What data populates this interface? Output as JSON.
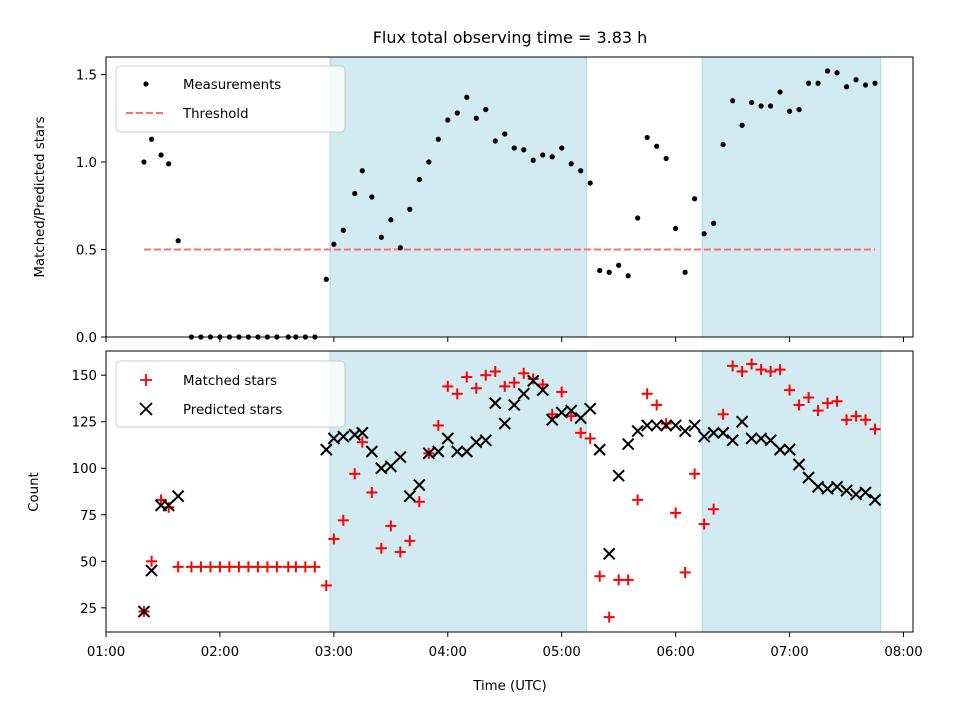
{
  "chart_data": [
    {
      "type": "scatter",
      "title": "Flux total observing time = 3.83 h",
      "xlabel": "",
      "ylabel": "Matched/Predicted stars",
      "xlim": [
        "01:00",
        "08:05"
      ],
      "ylim": [
        0,
        1.6
      ],
      "yticks": [
        "0.0",
        "0.5",
        "1.0",
        "1.5"
      ],
      "shaded_intervals": [
        [
          "02:58",
          "05:13"
        ],
        [
          "06:14",
          "07:48"
        ]
      ],
      "legend_position": "top-left",
      "grid": false,
      "series": [
        {
          "name": "Measurements",
          "marker": "dot",
          "color": "#000000",
          "points": [
            [
              "01:20",
              1.0
            ],
            [
              "01:24",
              1.13
            ],
            [
              "01:29",
              1.04
            ],
            [
              "01:33",
              0.99
            ],
            [
              "01:38",
              0.55
            ],
            [
              "01:45",
              0.0
            ],
            [
              "01:50",
              0.0
            ],
            [
              "01:55",
              0.0
            ],
            [
              "02:00",
              0.0
            ],
            [
              "02:05",
              0.0
            ],
            [
              "02:10",
              0.0
            ],
            [
              "02:15",
              0.0
            ],
            [
              "02:20",
              0.0
            ],
            [
              "02:25",
              0.0
            ],
            [
              "02:30",
              0.0
            ],
            [
              "02:36",
              0.0
            ],
            [
              "02:40",
              0.0
            ],
            [
              "02:45",
              0.0
            ],
            [
              "02:50",
              0.0
            ],
            [
              "02:56",
              0.33
            ],
            [
              "03:00",
              0.53
            ],
            [
              "03:05",
              0.61
            ],
            [
              "03:11",
              0.82
            ],
            [
              "03:15",
              0.95
            ],
            [
              "03:20",
              0.8
            ],
            [
              "03:25",
              0.57
            ],
            [
              "03:30",
              0.67
            ],
            [
              "03:35",
              0.51
            ],
            [
              "03:40",
              0.73
            ],
            [
              "03:45",
              0.9
            ],
            [
              "03:50",
              1.0
            ],
            [
              "03:55",
              1.13
            ],
            [
              "04:00",
              1.24
            ],
            [
              "04:05",
              1.28
            ],
            [
              "04:10",
              1.37
            ],
            [
              "04:15",
              1.25
            ],
            [
              "04:20",
              1.3
            ],
            [
              "04:25",
              1.12
            ],
            [
              "04:30",
              1.16
            ],
            [
              "04:35",
              1.08
            ],
            [
              "04:40",
              1.07
            ],
            [
              "04:45",
              1.01
            ],
            [
              "04:50",
              1.04
            ],
            [
              "04:55",
              1.03
            ],
            [
              "05:00",
              1.08
            ],
            [
              "05:05",
              0.99
            ],
            [
              "05:10",
              0.95
            ],
            [
              "05:15",
              0.88
            ],
            [
              "05:20",
              0.38
            ],
            [
              "05:25",
              0.37
            ],
            [
              "05:30",
              0.41
            ],
            [
              "05:35",
              0.35
            ],
            [
              "05:40",
              0.68
            ],
            [
              "05:45",
              1.14
            ],
            [
              "05:50",
              1.09
            ],
            [
              "05:55",
              1.02
            ],
            [
              "06:00",
              0.62
            ],
            [
              "06:05",
              0.37
            ],
            [
              "06:10",
              0.79
            ],
            [
              "06:15",
              0.59
            ],
            [
              "06:20",
              0.65
            ],
            [
              "06:25",
              1.1
            ],
            [
              "06:30",
              1.35
            ],
            [
              "06:35",
              1.21
            ],
            [
              "06:40",
              1.34
            ],
            [
              "06:45",
              1.32
            ],
            [
              "06:50",
              1.32
            ],
            [
              "06:55",
              1.4
            ],
            [
              "07:00",
              1.29
            ],
            [
              "07:05",
              1.3
            ],
            [
              "07:10",
              1.45
            ],
            [
              "07:15",
              1.45
            ],
            [
              "07:20",
              1.52
            ],
            [
              "07:25",
              1.51
            ],
            [
              "07:30",
              1.43
            ],
            [
              "07:35",
              1.47
            ],
            [
              "07:40",
              1.44
            ],
            [
              "07:45",
              1.45
            ]
          ]
        },
        {
          "name": "Threshold",
          "line": "dashed",
          "color": "#ff7070",
          "points": [
            [
              "01:20",
              0.5
            ],
            [
              "07:45",
              0.5
            ]
          ]
        }
      ]
    },
    {
      "type": "scatter",
      "title": "",
      "xlabel": "Time (UTC)",
      "ylabel": "Count",
      "xlim": [
        "01:00",
        "08:05"
      ],
      "ylim": [
        12,
        163
      ],
      "xticks": [
        "01:00",
        "02:00",
        "03:00",
        "04:00",
        "05:00",
        "06:00",
        "07:00",
        "08:00"
      ],
      "yticks": [
        "25",
        "50",
        "75",
        "100",
        "125",
        "150"
      ],
      "shaded_intervals": [
        [
          "02:58",
          "05:13"
        ],
        [
          "06:14",
          "07:48"
        ]
      ],
      "legend_position": "top-left",
      "grid": false,
      "series": [
        {
          "name": "Matched stars",
          "marker": "plus",
          "color": "#ff0000",
          "points": [
            [
              "01:20",
              23
            ],
            [
              "01:24",
              50
            ],
            [
              "01:29",
              83
            ],
            [
              "01:33",
              79
            ],
            [
              "01:38",
              47
            ],
            [
              "01:45",
              47
            ],
            [
              "01:50",
              47
            ],
            [
              "01:55",
              47
            ],
            [
              "02:00",
              47
            ],
            [
              "02:05",
              47
            ],
            [
              "02:10",
              47
            ],
            [
              "02:15",
              47
            ],
            [
              "02:20",
              47
            ],
            [
              "02:25",
              47
            ],
            [
              "02:30",
              47
            ],
            [
              "02:36",
              47
            ],
            [
              "02:40",
              47
            ],
            [
              "02:45",
              47
            ],
            [
              "02:50",
              47
            ],
            [
              "02:56",
              37
            ],
            [
              "03:00",
              62
            ],
            [
              "03:05",
              72
            ],
            [
              "03:11",
              97
            ],
            [
              "03:15",
              114
            ],
            [
              "03:20",
              87
            ],
            [
              "03:25",
              57
            ],
            [
              "03:30",
              69
            ],
            [
              "03:35",
              55
            ],
            [
              "03:40",
              61
            ],
            [
              "03:45",
              82
            ],
            [
              "03:50",
              108
            ],
            [
              "03:55",
              123
            ],
            [
              "04:00",
              144
            ],
            [
              "04:05",
              140
            ],
            [
              "04:10",
              149
            ],
            [
              "04:15",
              143
            ],
            [
              "04:20",
              150
            ],
            [
              "04:25",
              152
            ],
            [
              "04:30",
              144
            ],
            [
              "04:35",
              146
            ],
            [
              "04:40",
              151
            ],
            [
              "04:45",
              148
            ],
            [
              "04:50",
              145
            ],
            [
              "04:55",
              129
            ],
            [
              "05:00",
              141
            ],
            [
              "05:05",
              128
            ],
            [
              "05:10",
              119
            ],
            [
              "05:15",
              116
            ],
            [
              "05:20",
              42
            ],
            [
              "05:25",
              20
            ],
            [
              "05:30",
              40
            ],
            [
              "05:35",
              40
            ],
            [
              "05:40",
              83
            ],
            [
              "05:45",
              140
            ],
            [
              "05:50",
              134
            ],
            [
              "05:55",
              124
            ],
            [
              "06:00",
              76
            ],
            [
              "06:05",
              44
            ],
            [
              "06:10",
              97
            ],
            [
              "06:15",
              70
            ],
            [
              "06:20",
              78
            ],
            [
              "06:25",
              129
            ],
            [
              "06:30",
              155
            ],
            [
              "06:35",
              152
            ],
            [
              "06:40",
              156
            ],
            [
              "06:45",
              153
            ],
            [
              "06:50",
              152
            ],
            [
              "06:55",
              153
            ],
            [
              "07:00",
              142
            ],
            [
              "07:05",
              134
            ],
            [
              "07:10",
              138
            ],
            [
              "07:15",
              131
            ],
            [
              "07:20",
              135
            ],
            [
              "07:25",
              136
            ],
            [
              "07:30",
              126
            ],
            [
              "07:35",
              128
            ],
            [
              "07:40",
              126
            ],
            [
              "07:45",
              121
            ]
          ]
        },
        {
          "name": "Predicted stars",
          "marker": "x",
          "color": "#000000",
          "points": [
            [
              "01:20",
              23
            ],
            [
              "01:24",
              45
            ],
            [
              "01:29",
              80
            ],
            [
              "01:33",
              80
            ],
            [
              "01:38",
              85
            ],
            [
              "02:56",
              110
            ],
            [
              "03:00",
              116
            ],
            [
              "03:05",
              117
            ],
            [
              "03:11",
              118
            ],
            [
              "03:15",
              119
            ],
            [
              "03:20",
              109
            ],
            [
              "03:25",
              100
            ],
            [
              "03:30",
              101
            ],
            [
              "03:35",
              106
            ],
            [
              "03:40",
              85
            ],
            [
              "03:45",
              91
            ],
            [
              "03:50",
              108
            ],
            [
              "03:55",
              109
            ],
            [
              "04:00",
              116
            ],
            [
              "04:05",
              109
            ],
            [
              "04:10",
              109
            ],
            [
              "04:15",
              114
            ],
            [
              "04:20",
              115
            ],
            [
              "04:25",
              135
            ],
            [
              "04:30",
              124
            ],
            [
              "04:35",
              134
            ],
            [
              "04:40",
              140
            ],
            [
              "04:45",
              147
            ],
            [
              "04:50",
              142
            ],
            [
              "04:55",
              126
            ],
            [
              "05:00",
              130
            ],
            [
              "05:05",
              131
            ],
            [
              "05:10",
              127
            ],
            [
              "05:15",
              132
            ],
            [
              "05:20",
              110
            ],
            [
              "05:25",
              54
            ],
            [
              "05:30",
              96
            ],
            [
              "05:35",
              113
            ],
            [
              "05:40",
              120
            ],
            [
              "05:45",
              123
            ],
            [
              "05:50",
              123
            ],
            [
              "05:55",
              123
            ],
            [
              "06:00",
              123
            ],
            [
              "06:05",
              120
            ],
            [
              "06:10",
              123
            ],
            [
              "06:15",
              117
            ],
            [
              "06:20",
              119
            ],
            [
              "06:25",
              119
            ],
            [
              "06:30",
              115
            ],
            [
              "06:35",
              125
            ],
            [
              "06:40",
              116
            ],
            [
              "06:45",
              116
            ],
            [
              "06:50",
              115
            ],
            [
              "06:55",
              110
            ],
            [
              "07:00",
              110
            ],
            [
              "07:05",
              102
            ],
            [
              "07:10",
              95
            ],
            [
              "07:15",
              90
            ],
            [
              "07:20",
              89
            ],
            [
              "07:25",
              90
            ],
            [
              "07:30",
              88
            ],
            [
              "07:35",
              86
            ],
            [
              "07:40",
              87
            ],
            [
              "07:45",
              83
            ]
          ]
        }
      ]
    }
  ],
  "colors": {
    "shade": "#add8e6",
    "matched": "#ff0000",
    "threshold": "#ff7070",
    "predicted": "#000000"
  }
}
